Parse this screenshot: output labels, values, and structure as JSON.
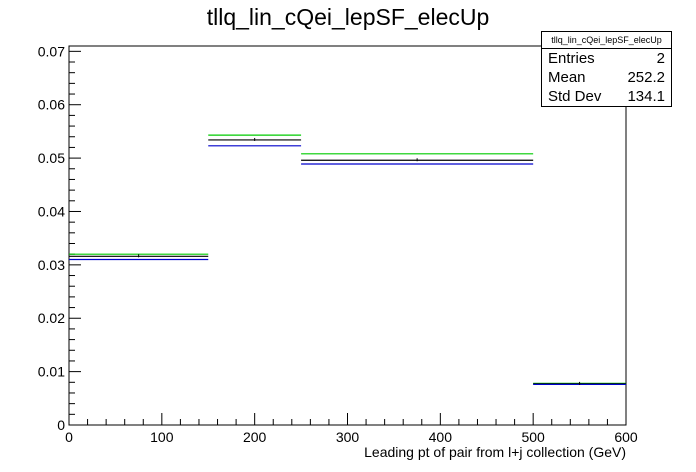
{
  "chart_data": {
    "type": "histogram",
    "title": "tllq_lin_cQei_lepSF_elecUp",
    "xlabel": "Leading pt of pair from l+j collection (GeV)",
    "ylabel": "",
    "xlim": [
      0,
      600
    ],
    "ylim": [
      0,
      0.071
    ],
    "x_ticks": [
      0,
      100,
      200,
      300,
      400,
      500,
      600
    ],
    "y_ticks": [
      0,
      0.01,
      0.02,
      0.03,
      0.04,
      0.05,
      0.06,
      0.07
    ],
    "x_tick_labels": [
      "0",
      "100",
      "200",
      "300",
      "400",
      "500",
      "600"
    ],
    "y_tick_labels": [
      "0",
      "0.01",
      "0.02",
      "0.03",
      "0.04",
      "0.05",
      "0.06",
      "0.07"
    ],
    "bins": [
      [
        0,
        150
      ],
      [
        150,
        250
      ],
      [
        250,
        500
      ],
      [
        500,
        600
      ]
    ],
    "series": [
      {
        "color": "#00cc00",
        "values": [
          0.032,
          0.0543,
          0.0508,
          0.0078
        ]
      },
      {
        "color": "#000000",
        "values": [
          0.0316,
          0.0534,
          0.0496,
          0.0077
        ]
      },
      {
        "color": "#0000cc",
        "values": [
          0.031,
          0.0523,
          0.0489,
          0.0076
        ]
      }
    ],
    "grid": false,
    "legend_position": "top-right"
  },
  "stats": {
    "title": "tllq_lin_cQei_lepSF_elecUp",
    "rows": [
      {
        "label": "Entries",
        "value": "2"
      },
      {
        "label": "Mean",
        "value": "252.2"
      },
      {
        "label": "Std Dev",
        "value": "134.1"
      }
    ]
  }
}
